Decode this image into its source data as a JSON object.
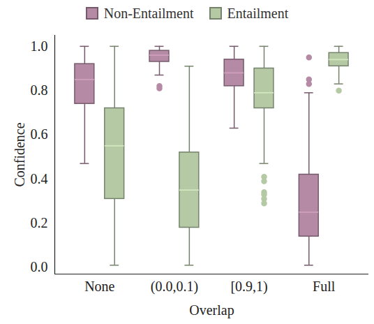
{
  "chart_data": {
    "type": "box",
    "categories": [
      "None",
      "(0.0,0.1)",
      "[0.9,1)",
      "Full"
    ],
    "x_label": "Overlap",
    "y_label": "Confidence",
    "ylim": [
      -0.03,
      1.05
    ],
    "yticks": [
      0,
      0.2,
      0.4,
      0.6,
      0.8,
      1
    ],
    "legend": "top",
    "series": [
      {
        "name": "Non-Entailment",
        "color": "#b58aa5",
        "values": [
          {
            "min": 0.47,
            "q1": 0.74,
            "median": 0.85,
            "q3": 0.92,
            "max": 1.0,
            "outliers": []
          },
          {
            "min": 0.87,
            "q1": 0.93,
            "median": 0.96,
            "q3": 0.98,
            "max": 1.0,
            "outliers": [
              0.82,
              0.81
            ]
          },
          {
            "min": 0.63,
            "q1": 0.82,
            "median": 0.88,
            "q3": 0.94,
            "max": 1.0,
            "outliers": []
          },
          {
            "min": 0.01,
            "q1": 0.14,
            "median": 0.25,
            "q3": 0.42,
            "max": 0.79,
            "outliers": [
              0.95,
              0.85,
              0.83
            ]
          }
        ]
      },
      {
        "name": "Entailment",
        "color": "#b5c9a5",
        "values": [
          {
            "min": 0.01,
            "q1": 0.31,
            "median": 0.55,
            "q3": 0.72,
            "max": 1.0,
            "outliers": []
          },
          {
            "min": 0.01,
            "q1": 0.18,
            "median": 0.35,
            "q3": 0.52,
            "max": 0.91,
            "outliers": []
          },
          {
            "min": 0.47,
            "q1": 0.72,
            "median": 0.79,
            "q3": 0.9,
            "max": 1.0,
            "outliers": [
              0.41,
              0.39,
              0.34,
              0.33,
              0.31,
              0.29
            ]
          },
          {
            "min": 0.83,
            "q1": 0.91,
            "median": 0.94,
            "q3": 0.97,
            "max": 1.0,
            "outliers": [
              0.8
            ]
          }
        ]
      }
    ]
  }
}
